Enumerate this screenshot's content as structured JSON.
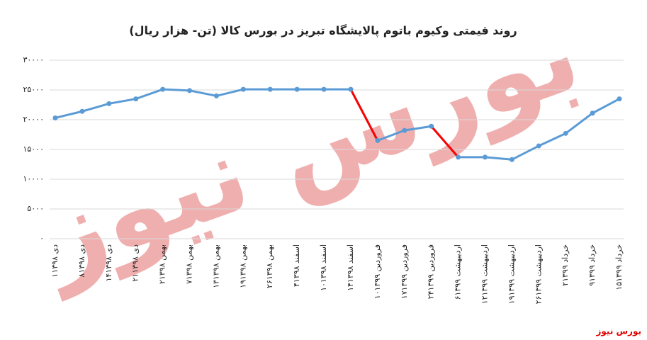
{
  "chart_data": {
    "type": "line",
    "title": "روند قیمتی وکیوم باتوم پالایشگاه تبریز در بورس کالا (تن- هزار ریال)",
    "watermark": "بورس نیوز",
    "source": "بورس نیوز",
    "categories": [
      "۱دی ۱۳۹۸",
      "۸دی ۱۳۹۸",
      "۱۴دی ۱۳۹۸",
      "۲۱دی ۱۳۹۸",
      "۲بهمن ۱۳۹۸",
      "۷بهمن ۱۳۹۸",
      "۱۳بهمن ۱۳۹۸",
      "۱۹بهمن ۱۳۹۸",
      "۲۶بهمن ۱۳۹۸",
      "۴اسفند ۱۳۹۸",
      "۱۰اسفند ۱۳۹۸",
      "۱۴اسفند ۱۳۹۸",
      "۱۰فروردین ۱۳۹۹",
      "۱۷فروردین ۱۳۹۹",
      "۲۴فروردین ۱۳۹۹",
      "۶اردیبهشت ۱۳۹۹",
      "۱۲اردیبهشت ۱۳۹۹",
      "۱۹اردیبهشت ۱۳۹۹",
      "۲۶اردیبهشت ۱۳۹۹",
      "۲خرداد ۱۳۹۹",
      "۹خرداد ۱۳۹۹",
      "۱۵خرداد ۱۳۹۹"
    ],
    "values": [
      20300,
      21400,
      22700,
      23500,
      25100,
      24900,
      24000,
      25100,
      25100,
      25100,
      25100,
      25100,
      16500,
      18200,
      18900,
      13700,
      13700,
      13300,
      15600,
      17700,
      21100,
      23500
    ],
    "color": "#5b9bd5",
    "segment_colors": [
      "#5b9bd5",
      "#5b9bd5",
      "#5b9bd5",
      "#5b9bd5",
      "#5b9bd5",
      "#5b9bd5",
      "#5b9bd5",
      "#5b9bd5",
      "#5b9bd5",
      "#5b9bd5",
      "#5b9bd5",
      "#ff0000",
      "#5b9bd5",
      "#5b9bd5",
      "#ff0000",
      "#5b9bd5",
      "#5b9bd5",
      "#5b9bd5",
      "#5b9bd5",
      "#5b9bd5",
      "#5b9bd5"
    ],
    "ylim": [
      0,
      30000
    ],
    "yticks": [
      {
        "value": 0,
        "label": "۰"
      },
      {
        "value": 5000,
        "label": "۵۰۰۰"
      },
      {
        "value": 10000,
        "label": "۱۰۰۰۰"
      },
      {
        "value": 15000,
        "label": "۱۵۰۰۰"
      },
      {
        "value": 20000,
        "label": "۲۰۰۰۰"
      },
      {
        "value": 25000,
        "label": "۲۵۰۰۰"
      },
      {
        "value": 30000,
        "label": "۳۰۰۰۰"
      }
    ],
    "grid": true
  }
}
